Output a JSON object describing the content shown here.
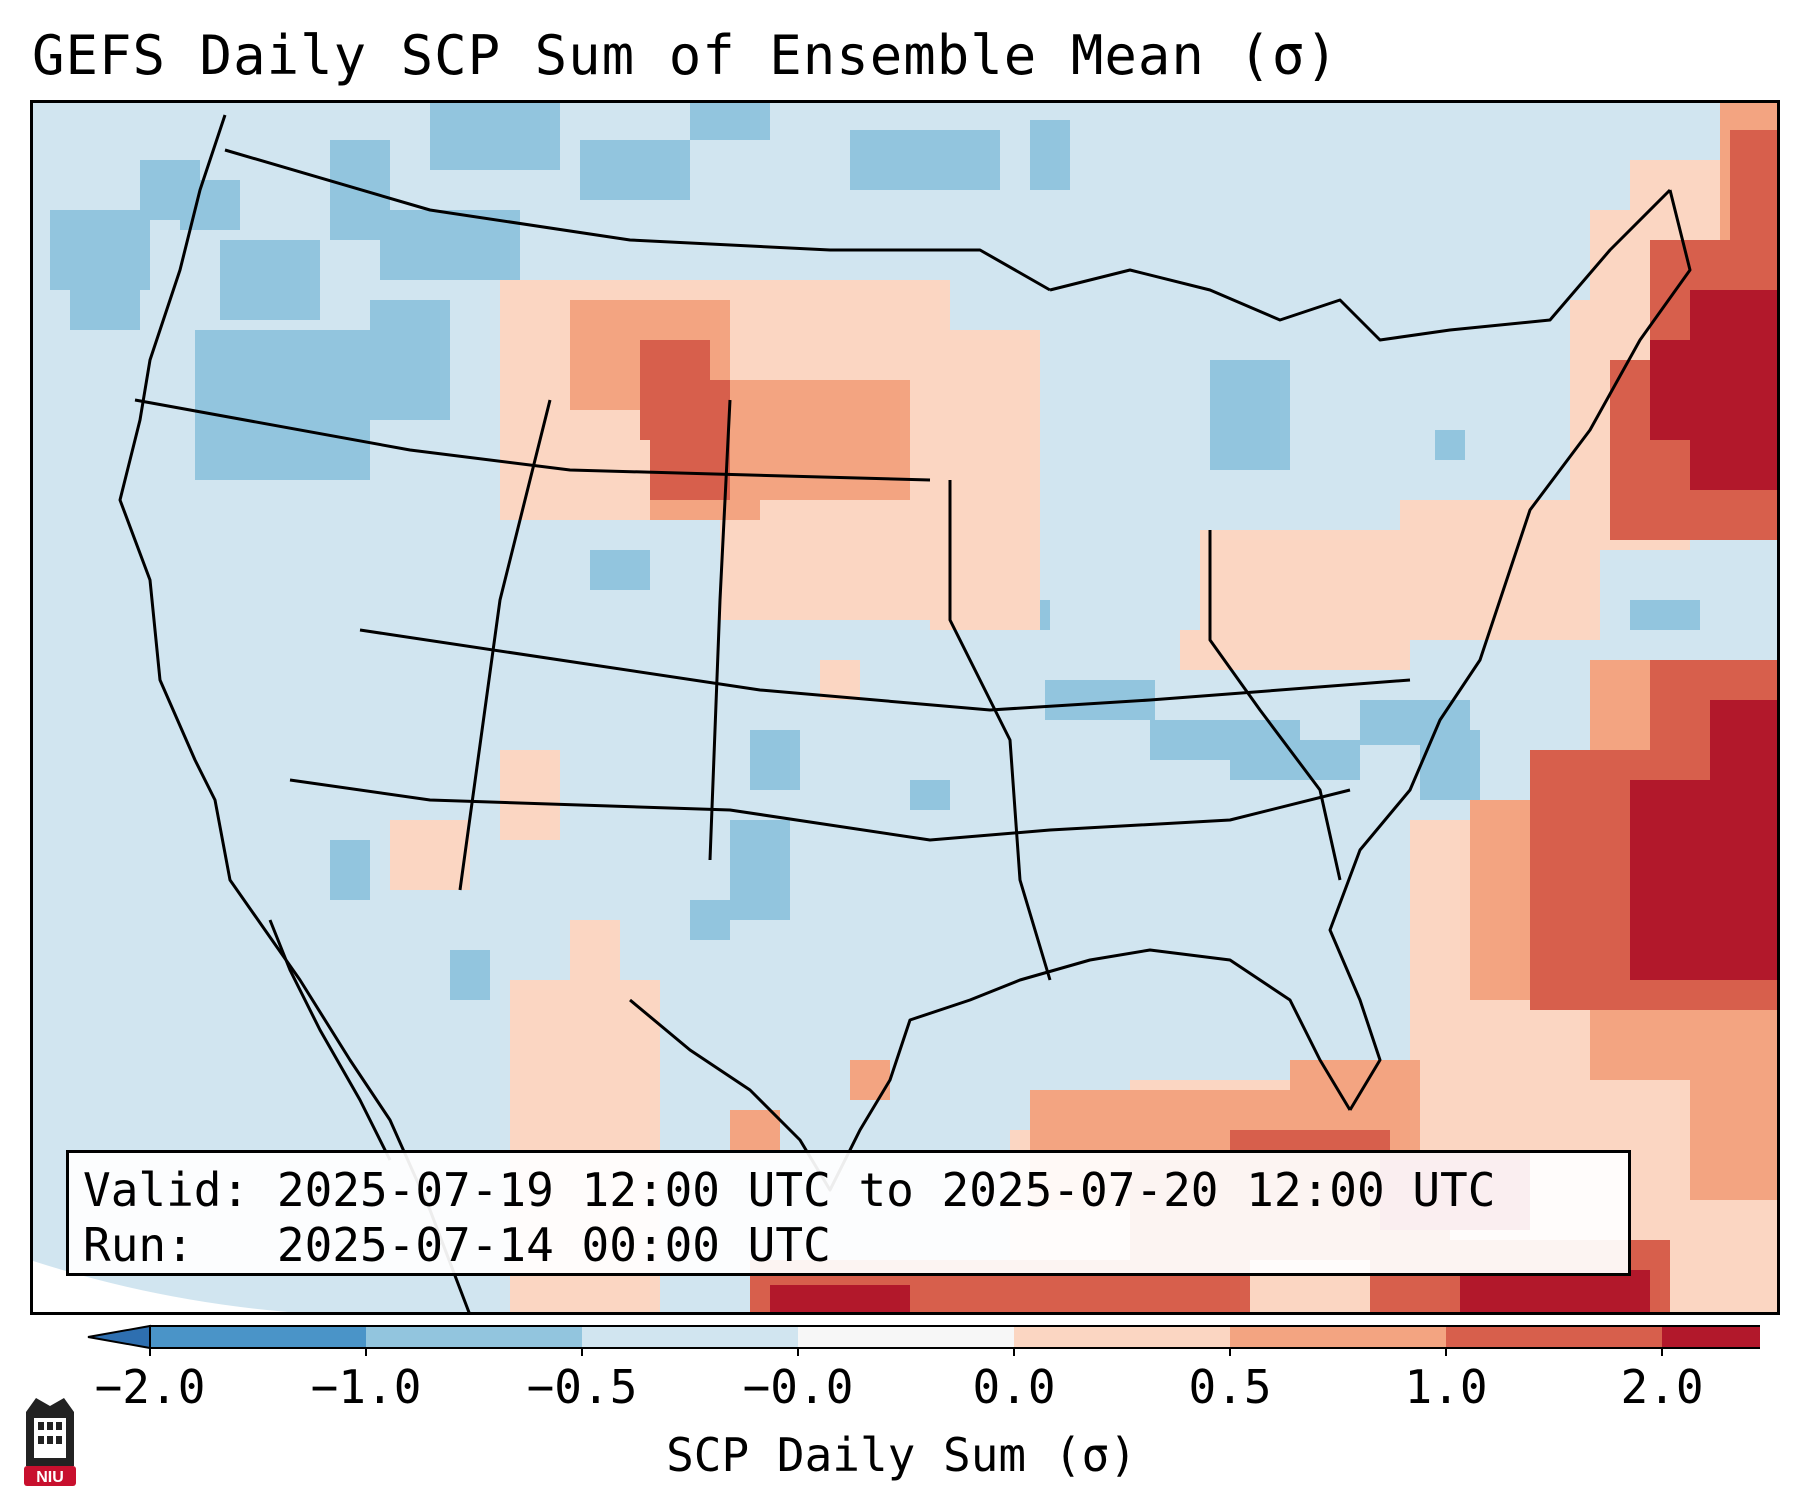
{
  "title": "GEFS Daily SCP Sum of Ensemble Mean (σ)",
  "info": {
    "valid_label": "Valid:",
    "valid_value": "2025-07-19 12:00 UTC to 2025-07-20 12:00 UTC",
    "run_label": "Run:",
    "run_value": "2025-07-14 00:00 UTC"
  },
  "colorbar": {
    "label": "SCP Daily Sum (σ)",
    "ticks": [
      "−2.0",
      "−1.0",
      "−0.5",
      "−0.0",
      "0.0",
      "0.5",
      "1.0",
      "2.0"
    ],
    "colors": [
      "#4a94c8",
      "#92c5de",
      "#d1e5f0",
      "#f7f7f7",
      "#fbd6c2",
      "#f3a481",
      "#d75f4c",
      "#b2182b"
    ],
    "under_color": "#2e6fb0",
    "over_color": "#a50f26"
  },
  "logo": {
    "text": "NIU",
    "color": "#c8102e"
  },
  "map_colors": {
    "ocean_base": "#d1e5f0",
    "neg_light": "#92c5de",
    "neg_mid": "#4a94c8",
    "pos_light": "#fbd6c2",
    "pos_mid": "#f3a481",
    "pos_strong": "#d75f4c",
    "pos_max": "#b2182b"
  }
}
